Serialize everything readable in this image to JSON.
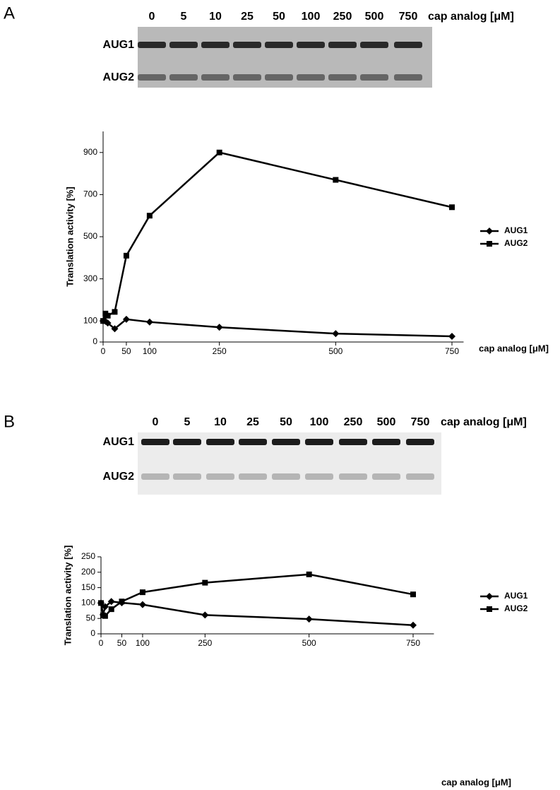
{
  "panels": [
    {
      "label": "A",
      "gel": {
        "lanes": [
          "0",
          "5",
          "10",
          "25",
          "50",
          "100",
          "250",
          "500",
          "750"
        ],
        "unit": "cap analog [μM]",
        "bands": [
          "AUG1",
          "AUG2"
        ]
      }
    },
    {
      "label": "B",
      "gel": {
        "lanes": [
          "0",
          "5",
          "10",
          "25",
          "50",
          "100",
          "250",
          "500",
          "750"
        ],
        "unit": "cap analog [μM]",
        "bands": [
          "AUG1",
          "AUG2"
        ]
      }
    }
  ],
  "chart_data": [
    {
      "type": "line",
      "x_label": "cap analog [μM]",
      "y_label": "Translation activity [%]",
      "x": [
        0,
        5,
        10,
        25,
        50,
        100,
        250,
        500,
        750
      ],
      "xlim": [
        0,
        775
      ],
      "xticks": [
        0,
        50,
        100,
        250,
        500,
        750
      ],
      "ylim": [
        0,
        1000
      ],
      "yticks": [
        0,
        100,
        300,
        500,
        700,
        900
      ],
      "legend": "right",
      "series": [
        {
          "name": "AUG1",
          "color": "#000000",
          "marker": "diamond",
          "values": [
            100,
            98,
            90,
            63,
            108,
            95,
            70,
            40,
            27
          ]
        },
        {
          "name": "AUG2",
          "color": "#000000",
          "marker": "square",
          "values": [
            100,
            135,
            125,
            143,
            410,
            600,
            900,
            770,
            640
          ]
        }
      ]
    },
    {
      "type": "line",
      "x_label": "cap analog [μM]",
      "y_label": "Translation activity [%]",
      "x": [
        0,
        5,
        10,
        25,
        50,
        100,
        250,
        500,
        750
      ],
      "xlim": [
        0,
        800
      ],
      "xticks": [
        0,
        50,
        100,
        250,
        500,
        750
      ],
      "ylim": [
        0,
        250
      ],
      "yticks": [
        0,
        50,
        100,
        150,
        200,
        250
      ],
      "legend": "right",
      "series": [
        {
          "name": "AUG1",
          "color": "#000000",
          "marker": "diamond",
          "values": [
            100,
            62,
            88,
            105,
            101,
            95,
            61,
            48,
            28
          ]
        },
        {
          "name": "AUG2",
          "color": "#000000",
          "marker": "square",
          "values": [
            100,
            60,
            58,
            80,
            105,
            135,
            166,
            193,
            128
          ]
        }
      ]
    }
  ]
}
